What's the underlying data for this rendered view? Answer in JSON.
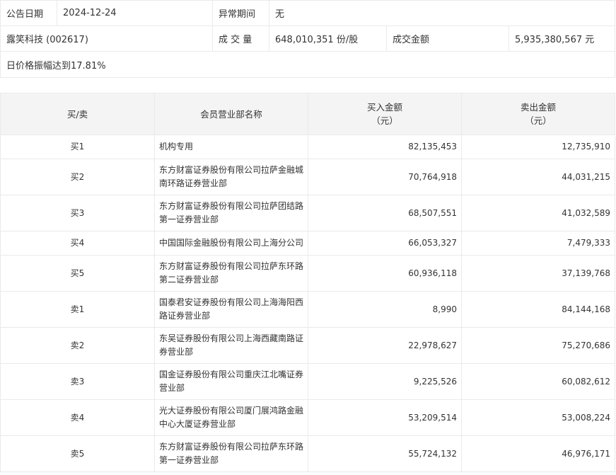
{
  "info": {
    "date_label": "公告日期",
    "date_value": "2024-12-24",
    "period_label": "异常期间",
    "period_value": "无",
    "stock": "露笑科技 (002617)",
    "volume_label": "成 交 量",
    "volume_value": "648,010,351 份/股",
    "amount_label": "成交金额",
    "amount_value": "5,935,380,567 元",
    "reason": "日价格振幅达到17.81%"
  },
  "table": {
    "headers": [
      "买/卖",
      "会员营业部名称",
      "买入金额\n（元）",
      "卖出金额\n（元）"
    ],
    "rows": [
      {
        "side": "买1",
        "name": "机构专用",
        "buy": "82,135,453",
        "sell": "12,735,910"
      },
      {
        "side": "买2",
        "name": "东方财富证券股份有限公司拉萨金融城南环路证券营业部",
        "buy": "70,764,918",
        "sell": "44,031,215"
      },
      {
        "side": "买3",
        "name": "东方财富证券股份有限公司拉萨团结路第一证券营业部",
        "buy": "68,507,551",
        "sell": "41,032,589"
      },
      {
        "side": "买4",
        "name": "中国国际金融股份有限公司上海分公司",
        "buy": "66,053,327",
        "sell": "7,479,333"
      },
      {
        "side": "买5",
        "name": "东方财富证券股份有限公司拉萨东环路第二证券营业部",
        "buy": "60,936,118",
        "sell": "37,139,768"
      },
      {
        "side": "卖1",
        "name": "国泰君安证券股份有限公司上海海阳西路证券营业部",
        "buy": "8,990",
        "sell": "84,144,168"
      },
      {
        "side": "卖2",
        "name": "东吴证券股份有限公司上海西藏南路证券营业部",
        "buy": "22,978,627",
        "sell": "75,270,686"
      },
      {
        "side": "卖3",
        "name": "国金证券股份有限公司重庆江北嘴证券营业部",
        "buy": "9,225,526",
        "sell": "60,082,612"
      },
      {
        "side": "卖4",
        "name": "光大证券股份有限公司厦门展鸿路金融中心大厦证券营业部",
        "buy": "53,209,514",
        "sell": "53,008,224"
      },
      {
        "side": "卖5",
        "name": "东方财富证券股份有限公司拉萨东环路第一证券营业部",
        "buy": "55,724,132",
        "sell": "46,976,171"
      }
    ]
  }
}
